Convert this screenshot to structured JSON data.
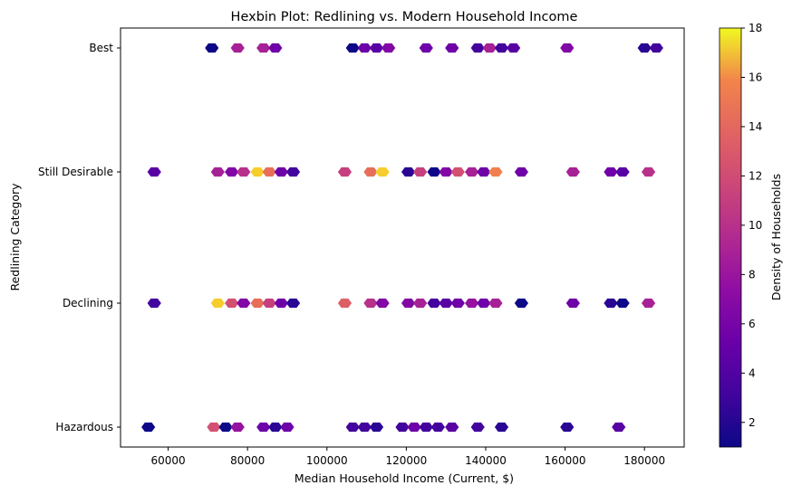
{
  "chart_data": {
    "type": "hexbin",
    "title": "Hexbin Plot: Redlining vs. Modern Household Income",
    "xlabel": "Median Household Income (Current, $)",
    "ylabel": "Redlining Category",
    "xlim": [
      48000,
      190000
    ],
    "x_ticks": [
      60000,
      80000,
      100000,
      120000,
      140000,
      160000,
      180000
    ],
    "y_categories": [
      "Hazardous",
      "Declining",
      "Still Desirable",
      "Best"
    ],
    "colormap": "plasma",
    "colorbar": {
      "label": "Density of Households",
      "min": 1,
      "max": 18,
      "ticks": [
        2,
        4,
        6,
        8,
        10,
        12,
        14,
        16,
        18
      ]
    },
    "grid": false,
    "cells": [
      {
        "x": 55000,
        "category": "Hazardous",
        "count": 1
      },
      {
        "x": 71500,
        "category": "Hazardous",
        "count": 11
      },
      {
        "x": 74500,
        "category": "Hazardous",
        "count": 1
      },
      {
        "x": 77500,
        "category": "Hazardous",
        "count": 7
      },
      {
        "x": 84000,
        "category": "Hazardous",
        "count": 5
      },
      {
        "x": 87000,
        "category": "Hazardous",
        "count": 2
      },
      {
        "x": 90000,
        "category": "Hazardous",
        "count": 5
      },
      {
        "x": 106500,
        "category": "Hazardous",
        "count": 3
      },
      {
        "x": 109500,
        "category": "Hazardous",
        "count": 3
      },
      {
        "x": 112500,
        "category": "Hazardous",
        "count": 2
      },
      {
        "x": 119000,
        "category": "Hazardous",
        "count": 3
      },
      {
        "x": 122000,
        "category": "Hazardous",
        "count": 5
      },
      {
        "x": 125000,
        "category": "Hazardous",
        "count": 3
      },
      {
        "x": 128000,
        "category": "Hazardous",
        "count": 3
      },
      {
        "x": 131500,
        "category": "Hazardous",
        "count": 4
      },
      {
        "x": 138000,
        "category": "Hazardous",
        "count": 3
      },
      {
        "x": 144000,
        "category": "Hazardous",
        "count": 2
      },
      {
        "x": 160500,
        "category": "Hazardous",
        "count": 2
      },
      {
        "x": 173500,
        "category": "Hazardous",
        "count": 4
      },
      {
        "x": 56500,
        "category": "Declining",
        "count": 3
      },
      {
        "x": 72500,
        "category": "Declining",
        "count": 17
      },
      {
        "x": 76000,
        "category": "Declining",
        "count": 11
      },
      {
        "x": 79000,
        "category": "Declining",
        "count": 6
      },
      {
        "x": 82500,
        "category": "Declining",
        "count": 13
      },
      {
        "x": 85500,
        "category": "Declining",
        "count": 10
      },
      {
        "x": 88500,
        "category": "Declining",
        "count": 5
      },
      {
        "x": 91500,
        "category": "Declining",
        "count": 2
      },
      {
        "x": 104500,
        "category": "Declining",
        "count": 12
      },
      {
        "x": 111000,
        "category": "Declining",
        "count": 9
      },
      {
        "x": 114000,
        "category": "Declining",
        "count": 6
      },
      {
        "x": 120500,
        "category": "Declining",
        "count": 6
      },
      {
        "x": 123500,
        "category": "Declining",
        "count": 8
      },
      {
        "x": 127000,
        "category": "Declining",
        "count": 3
      },
      {
        "x": 130000,
        "category": "Declining",
        "count": 4
      },
      {
        "x": 133000,
        "category": "Declining",
        "count": 5
      },
      {
        "x": 136500,
        "category": "Declining",
        "count": 7
      },
      {
        "x": 139500,
        "category": "Declining",
        "count": 5
      },
      {
        "x": 142500,
        "category": "Declining",
        "count": 8
      },
      {
        "x": 149000,
        "category": "Declining",
        "count": 1
      },
      {
        "x": 162000,
        "category": "Declining",
        "count": 5
      },
      {
        "x": 171500,
        "category": "Declining",
        "count": 2
      },
      {
        "x": 174500,
        "category": "Declining",
        "count": 1
      },
      {
        "x": 181000,
        "category": "Declining",
        "count": 8
      },
      {
        "x": 56500,
        "category": "Still Desirable",
        "count": 4
      },
      {
        "x": 72500,
        "category": "Still Desirable",
        "count": 8
      },
      {
        "x": 76000,
        "category": "Still Desirable",
        "count": 6
      },
      {
        "x": 79000,
        "category": "Still Desirable",
        "count": 9
      },
      {
        "x": 82500,
        "category": "Still Desirable",
        "count": 17
      },
      {
        "x": 85500,
        "category": "Still Desirable",
        "count": 13
      },
      {
        "x": 88500,
        "category": "Still Desirable",
        "count": 5
      },
      {
        "x": 91500,
        "category": "Still Desirable",
        "count": 3
      },
      {
        "x": 104500,
        "category": "Still Desirable",
        "count": 10
      },
      {
        "x": 111000,
        "category": "Still Desirable",
        "count": 13
      },
      {
        "x": 114000,
        "category": "Still Desirable",
        "count": 17
      },
      {
        "x": 120500,
        "category": "Still Desirable",
        "count": 2
      },
      {
        "x": 123500,
        "category": "Still Desirable",
        "count": 10
      },
      {
        "x": 127000,
        "category": "Still Desirable",
        "count": 1
      },
      {
        "x": 130000,
        "category": "Still Desirable",
        "count": 6
      },
      {
        "x": 133000,
        "category": "Still Desirable",
        "count": 11
      },
      {
        "x": 136500,
        "category": "Still Desirable",
        "count": 8
      },
      {
        "x": 139500,
        "category": "Still Desirable",
        "count": 5
      },
      {
        "x": 142500,
        "category": "Still Desirable",
        "count": 14
      },
      {
        "x": 149000,
        "category": "Still Desirable",
        "count": 5
      },
      {
        "x": 162000,
        "category": "Still Desirable",
        "count": 8
      },
      {
        "x": 171500,
        "category": "Still Desirable",
        "count": 5
      },
      {
        "x": 174500,
        "category": "Still Desirable",
        "count": 4
      },
      {
        "x": 181000,
        "category": "Still Desirable",
        "count": 9
      },
      {
        "x": 71000,
        "category": "Best",
        "count": 1
      },
      {
        "x": 77500,
        "category": "Best",
        "count": 8
      },
      {
        "x": 84000,
        "category": "Best",
        "count": 8
      },
      {
        "x": 87000,
        "category": "Best",
        "count": 5
      },
      {
        "x": 106500,
        "category": "Best",
        "count": 1
      },
      {
        "x": 109500,
        "category": "Best",
        "count": 5
      },
      {
        "x": 112500,
        "category": "Best",
        "count": 4
      },
      {
        "x": 115500,
        "category": "Best",
        "count": 6
      },
      {
        "x": 125000,
        "category": "Best",
        "count": 5
      },
      {
        "x": 131500,
        "category": "Best",
        "count": 5
      },
      {
        "x": 138000,
        "category": "Best",
        "count": 3
      },
      {
        "x": 141000,
        "category": "Best",
        "count": 8
      },
      {
        "x": 144000,
        "category": "Best",
        "count": 3
      },
      {
        "x": 147000,
        "category": "Best",
        "count": 4
      },
      {
        "x": 160500,
        "category": "Best",
        "count": 6
      },
      {
        "x": 180000,
        "category": "Best",
        "count": 2
      },
      {
        "x": 183000,
        "category": "Best",
        "count": 3
      }
    ]
  }
}
